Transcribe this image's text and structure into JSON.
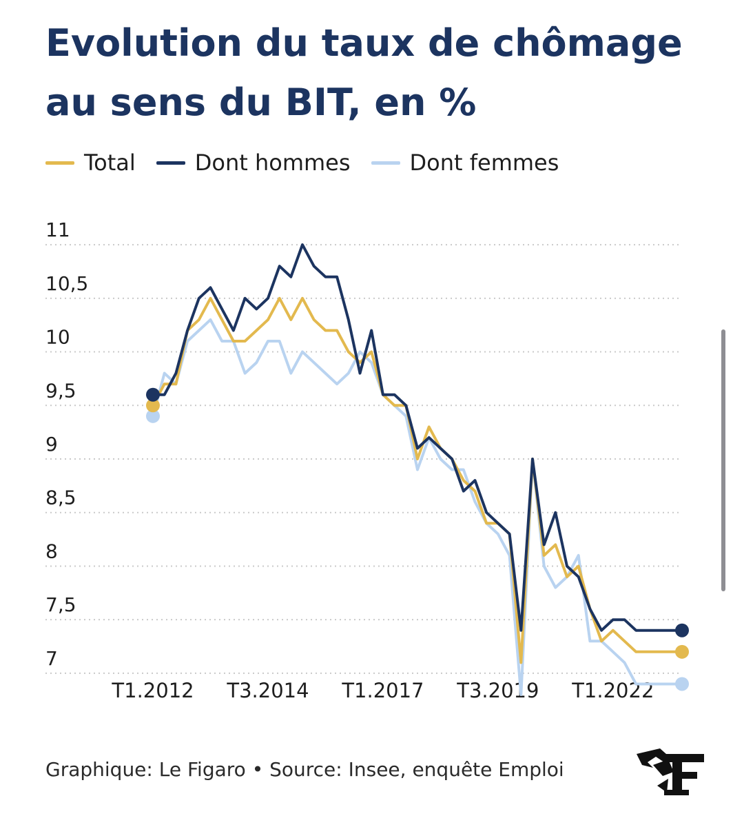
{
  "title": "Evolution du taux de chômage au sens du BIT, en %",
  "legend": [
    {
      "label": "Total",
      "color": "#e3b94e"
    },
    {
      "label": "Dont hommes",
      "color": "#1c3460"
    },
    {
      "label": "Dont femmes",
      "color": "#b9d3f0"
    }
  ],
  "footer": "Graphique: Le Figaro • Source: Insee, enquête Emploi",
  "logo_icon": "le-figaro-logo",
  "chart_data": {
    "type": "line",
    "title": "Evolution du taux de chômage au sens du BIT, en %",
    "xlabel": "",
    "ylabel": "",
    "ylim": [
      6.8,
      11.2
    ],
    "grid": true,
    "gridline_style": "dotted",
    "legend_placement": "top-left",
    "yticks": [
      7,
      7.5,
      8,
      8.5,
      9,
      9.5,
      10,
      10.5,
      11
    ],
    "ytick_labels": [
      "7",
      "7,5",
      "8",
      "8,5",
      "9",
      "9,5",
      "10",
      "10,5",
      "11"
    ],
    "xtick_labels": [
      "T1.2012",
      "T3.2014",
      "T1.2017",
      "T3.2019",
      "T1.2022"
    ],
    "xtick_positions": [
      0,
      10,
      20,
      30,
      40
    ],
    "x": [
      "T1.2012",
      "T2.2012",
      "T3.2012",
      "T4.2012",
      "T1.2013",
      "T2.2013",
      "T3.2013",
      "T4.2013",
      "T1.2014",
      "T2.2014",
      "T3.2014",
      "T4.2014",
      "T1.2015",
      "T2.2015",
      "T3.2015",
      "T4.2015",
      "T1.2016",
      "T2.2016",
      "T3.2016",
      "T4.2016",
      "T1.2017",
      "T2.2017",
      "T3.2017",
      "T4.2017",
      "T1.2018",
      "T2.2018",
      "T3.2018",
      "T4.2018",
      "T1.2019",
      "T2.2019",
      "T3.2019",
      "T4.2019",
      "T1.2020",
      "T2.2020",
      "T3.2020",
      "T4.2020",
      "T1.2021",
      "T2.2021",
      "T3.2021",
      "T4.2021",
      "T1.2022",
      "T2.2022",
      "T3.2022",
      "T4.2022",
      "T1.2023",
      "T2.2023",
      "T3.2023"
    ],
    "series": [
      {
        "name": "Total",
        "color": "#e3b94e",
        "values": [
          9.5,
          9.7,
          9.7,
          10.2,
          10.3,
          10.5,
          10.3,
          10.1,
          10.1,
          10.2,
          10.3,
          10.5,
          10.3,
          10.5,
          10.3,
          10.2,
          10.2,
          10.0,
          9.9,
          10.0,
          9.6,
          9.5,
          9.5,
          9.0,
          9.3,
          9.1,
          9.0,
          8.8,
          8.7,
          8.4,
          8.4,
          8.3,
          7.1,
          9.0,
          8.1,
          8.2,
          7.9,
          8.0,
          7.6,
          7.3,
          7.4,
          7.3,
          7.2,
          7.2,
          7.2,
          7.2,
          7.2
        ]
      },
      {
        "name": "Dont hommes",
        "color": "#1c3460",
        "values": [
          9.6,
          9.6,
          9.8,
          10.2,
          10.5,
          10.6,
          10.4,
          10.2,
          10.5,
          10.4,
          10.5,
          10.8,
          10.7,
          11.0,
          10.8,
          10.7,
          10.7,
          10.3,
          9.8,
          10.2,
          9.6,
          9.6,
          9.5,
          9.1,
          9.2,
          9.1,
          9.0,
          8.7,
          8.8,
          8.5,
          8.4,
          8.3,
          7.4,
          9.0,
          8.2,
          8.5,
          8.0,
          7.9,
          7.6,
          7.4,
          7.5,
          7.5,
          7.4,
          7.4,
          7.4,
          7.4,
          7.4
        ]
      },
      {
        "name": "Dont femmes",
        "color": "#b9d3f0",
        "values": [
          9.4,
          9.8,
          9.7,
          10.1,
          10.2,
          10.3,
          10.1,
          10.1,
          9.8,
          9.9,
          10.1,
          10.1,
          9.8,
          10.0,
          9.9,
          9.8,
          9.7,
          9.8,
          10.0,
          9.9,
          9.6,
          9.5,
          9.4,
          8.9,
          9.2,
          9.0,
          8.9,
          8.9,
          8.6,
          8.4,
          8.3,
          8.1,
          6.8,
          9.0,
          8.0,
          7.8,
          7.9,
          8.1,
          7.3,
          7.3,
          7.2,
          7.1,
          6.9,
          6.9,
          6.9,
          6.9,
          6.9
        ]
      }
    ]
  }
}
